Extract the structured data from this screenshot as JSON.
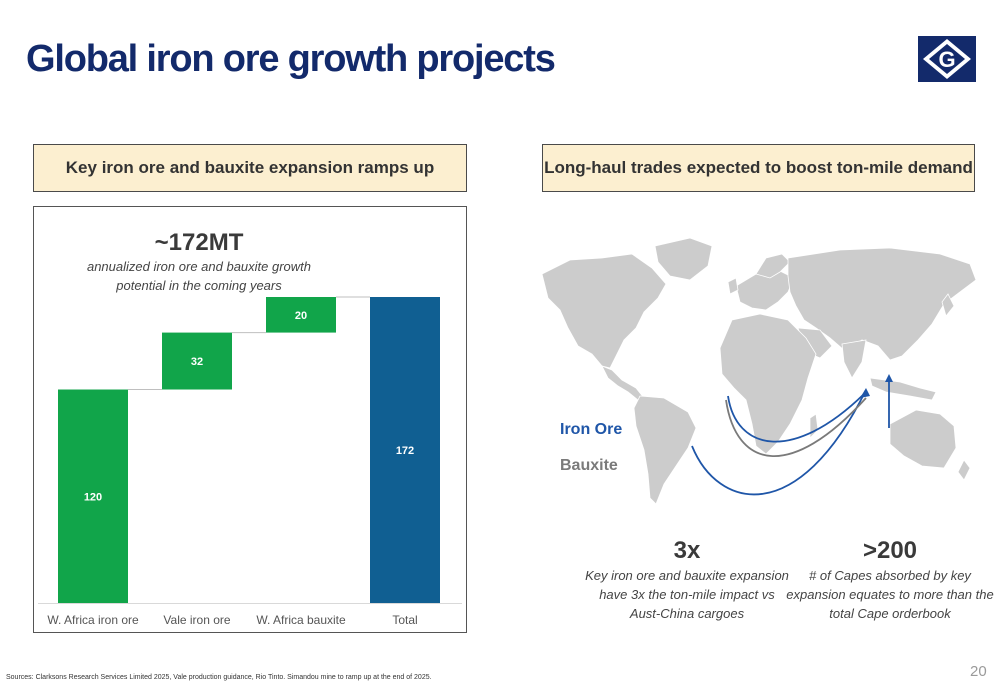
{
  "page": {
    "title": "Global iron ore growth projects",
    "logo_letter": "G",
    "source": "Sources: Clarksons Research Services Limited 2025, Vale production guidance, Rio Tinto. Simandou mine to ramp up at the end of 2025.",
    "page_number": "20"
  },
  "left_panel": {
    "header": "Key iron ore and bauxite expansion ramps up",
    "big_figure": "~172MT",
    "subtitle_line1": "annualized iron ore and bauxite growth",
    "subtitle_line2": "potential in the coming years"
  },
  "right_panel": {
    "header": "Long-haul trades expected to boost ton-mile demand",
    "legend_iron": "Iron Ore",
    "legend_bauxite": "Bauxite",
    "stat1_value": "3x",
    "stat1_line1": "Key iron ore and bauxite expansion",
    "stat1_line2": "have 3x the ton-mile impact vs",
    "stat1_line3": "Aust-China cargoes",
    "stat2_value": ">200",
    "stat2_line1": "# of Capes absorbed by key",
    "stat2_line2": "expansion equates to more than the",
    "stat2_line3": "total Cape orderbook"
  },
  "colors": {
    "title": "#132a6b",
    "increase": "#11a54a",
    "total": "#105f92",
    "iron_ore": "#1f56a8",
    "bauxite": "#7a7a7a",
    "header_bg": "#fcefd0",
    "land": "#cccccc"
  },
  "chart_data": {
    "type": "bar",
    "subtype": "waterfall",
    "categories": [
      "W. Africa iron ore",
      "Vale iron ore",
      "W. Africa bauxite",
      "Total"
    ],
    "values": [
      120,
      32,
      20,
      172
    ],
    "bar_kinds": [
      "increase",
      "increase",
      "increase",
      "total"
    ],
    "ylim": [
      0,
      172
    ],
    "grid": false,
    "legend": "none"
  }
}
